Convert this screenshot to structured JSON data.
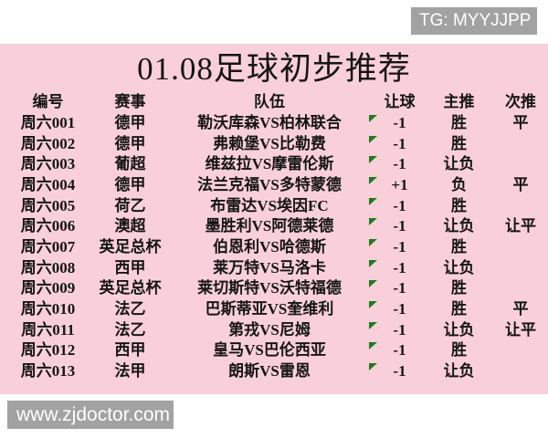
{
  "top_badge": {
    "label": "TG: MYYJJPP"
  },
  "bottom_badge": {
    "label": "www.zjdoctor.com"
  },
  "title": "01.08足球初步推荐",
  "colors": {
    "pink_background": "#f9d0d9",
    "badge_gray": "#a2a2a2",
    "flag_green": "#217a21",
    "text": "#151515"
  },
  "icons": {
    "cell_marker": "green-corner-triangle-icon"
  },
  "table": {
    "columns": [
      "编号",
      "赛事",
      "队伍",
      "让球",
      "主推",
      "次推"
    ],
    "rows": [
      {
        "id": "周六001",
        "league": "德甲",
        "teams": "勒沃库森VS柏林联合",
        "handicap": "-1",
        "main": "胜",
        "secondary": "平"
      },
      {
        "id": "周六002",
        "league": "德甲",
        "teams": "弗赖堡VS比勒费",
        "handicap": "-1",
        "main": "胜",
        "secondary": ""
      },
      {
        "id": "周六003",
        "league": "葡超",
        "teams": "维兹拉VS摩雷伦斯",
        "handicap": "-1",
        "main": "让负",
        "secondary": ""
      },
      {
        "id": "周六004",
        "league": "德甲",
        "teams": "法兰克福VS多特蒙德",
        "handicap": "+1",
        "main": "负",
        "secondary": "平"
      },
      {
        "id": "周六005",
        "league": "荷乙",
        "teams": "布雷达VS埃因FC",
        "handicap": "-1",
        "main": "胜",
        "secondary": ""
      },
      {
        "id": "周六006",
        "league": "澳超",
        "teams": "墨胜利VS阿德莱德",
        "handicap": "-1",
        "main": "让负",
        "secondary": "让平"
      },
      {
        "id": "周六007",
        "league": "英足总杯",
        "teams": "伯恩利VS哈德斯",
        "handicap": "-1",
        "main": "胜",
        "secondary": ""
      },
      {
        "id": "周六008",
        "league": "西甲",
        "teams": "莱万特VS马洛卡",
        "handicap": "-1",
        "main": "让负",
        "secondary": ""
      },
      {
        "id": "周六009",
        "league": "英足总杯",
        "teams": "莱切斯特VS沃特福德",
        "handicap": "-1",
        "main": "胜",
        "secondary": ""
      },
      {
        "id": "周六010",
        "league": "法乙",
        "teams": "巴斯蒂亚VS奎维利",
        "handicap": "-1",
        "main": "胜",
        "secondary": "平"
      },
      {
        "id": "周六011",
        "league": "法乙",
        "teams": "第戎VS尼姆",
        "handicap": "-1",
        "main": "让负",
        "secondary": "让平"
      },
      {
        "id": "周六012",
        "league": "西甲",
        "teams": "皇马VS巴伦西亚",
        "handicap": "-1",
        "main": "胜",
        "secondary": ""
      },
      {
        "id": "周六013",
        "league": "法甲",
        "teams": "朗斯VS雷恩",
        "handicap": "-1",
        "main": "让负",
        "secondary": ""
      }
    ]
  }
}
